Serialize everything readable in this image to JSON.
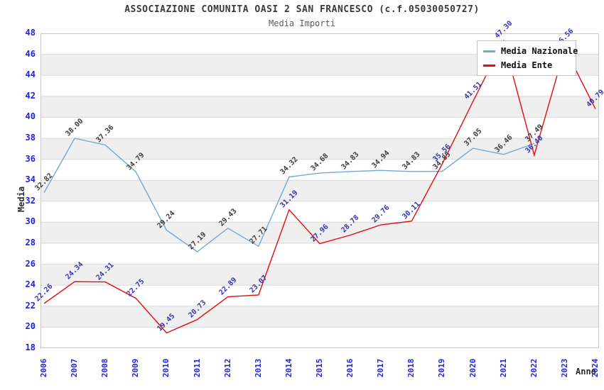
{
  "header": {
    "title": "ASSOCIAZIONE COMUNITA OASI 2 SAN FRANCESCO (c.f.05030050727)",
    "subtitle": "Media Importi"
  },
  "axes": {
    "y_label": "Media",
    "x_label": "Anno",
    "y_ticks": [
      48,
      46,
      44,
      42,
      40,
      38,
      36,
      34,
      32,
      30,
      28,
      26,
      24,
      22,
      20,
      18
    ],
    "x_ticks": [
      "2006",
      "2007",
      "2008",
      "2009",
      "2010",
      "2011",
      "2012",
      "2013",
      "2014",
      "2015",
      "2016",
      "2017",
      "2018",
      "2019",
      "2020",
      "2021",
      "2022",
      "2023",
      "2024"
    ],
    "tick_color": "#2222d8"
  },
  "legend": {
    "items": [
      {
        "label": "Media Nazionale",
        "color": "#6fa8dc"
      },
      {
        "label": "Media Ente",
        "color": "#e40c0c"
      }
    ]
  },
  "chart_data": {
    "type": "line",
    "title": "ASSOCIAZIONE COMUNITA OASI 2 SAN FRANCESCO (c.f.05030050727)",
    "subtitle": "Media Importi",
    "xlabel": "Anno",
    "ylabel": "Media",
    "ylim": [
      18,
      48
    ],
    "grid": true,
    "band_color": "#efefef",
    "grid_color": "#d9d9d9",
    "border_color": "#c8c8c8",
    "legend_position": "top-right",
    "x": [
      2006,
      2007,
      2008,
      2009,
      2010,
      2011,
      2012,
      2013,
      2014,
      2015,
      2016,
      2017,
      2018,
      2019,
      2020,
      2021,
      2022,
      2023,
      2024
    ],
    "series": [
      {
        "name": "Media Nazionale",
        "color": "#6fa8dc",
        "label_color": "#3d3d3d",
        "values": [
          32.82,
          38.0,
          37.36,
          34.79,
          29.24,
          27.19,
          29.43,
          27.71,
          34.32,
          34.68,
          34.83,
          34.94,
          34.83,
          34.85,
          37.05,
          36.46,
          37.49,
          null,
          null
        ]
      },
      {
        "name": "Media Ente",
        "color": "#e40c0c",
        "label_color": "#3434b4",
        "values": [
          22.26,
          24.34,
          24.31,
          22.75,
          19.45,
          20.73,
          22.89,
          23.07,
          31.19,
          27.96,
          28.78,
          29.76,
          30.11,
          35.56,
          41.51,
          47.3,
          36.4,
          46.56,
          40.79
        ]
      }
    ]
  }
}
